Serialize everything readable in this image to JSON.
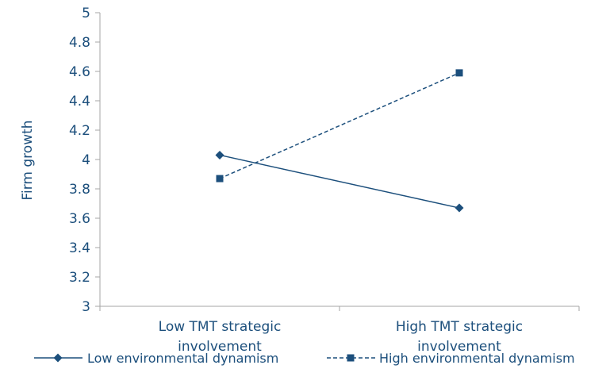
{
  "chart_data": {
    "type": "line",
    "title": "",
    "xlabel": "",
    "ylabel": "Firm growth",
    "categories": [
      [
        "Low TMT strategic",
        "involvement"
      ],
      [
        "High TMT strategic",
        "involvement"
      ]
    ],
    "ylim": [
      3,
      5
    ],
    "yticks": [
      "3",
      "3.2",
      "3.4",
      "3.6",
      "3.8",
      "4",
      "4.2",
      "4.4",
      "4.6",
      "4.8",
      "5"
    ],
    "grid": false,
    "legend_position": "bottom",
    "series": [
      {
        "name": "Low environmental dynamism",
        "values": [
          4.03,
          3.67
        ],
        "marker": "diamond",
        "dash": "solid"
      },
      {
        "name": "High environmental dynamism",
        "values": [
          3.87,
          4.59
        ],
        "marker": "square",
        "dash": "dashed"
      }
    ],
    "colors": {
      "series": "#1c4f7c",
      "axis": "#a6a6a6",
      "text": "#1c4f7c"
    }
  }
}
